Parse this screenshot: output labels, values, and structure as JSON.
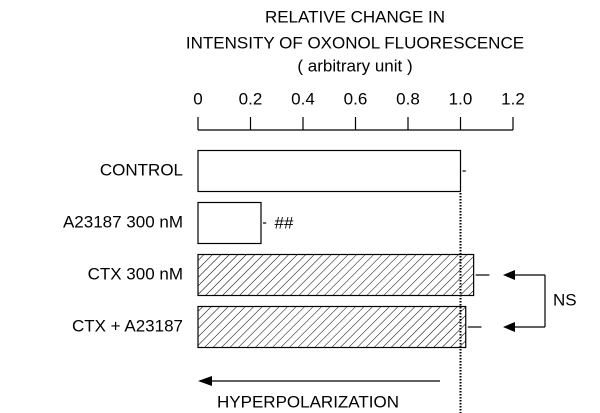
{
  "chart_data": {
    "type": "hbar",
    "title": [
      "RELATIVE CHANGE IN",
      "INTENSITY OF OXONOL FLUORESCENCE"
    ],
    "xlabel": "( arbitrary unit )",
    "categories": [
      "CONTROL",
      "A23187  300 nM",
      "CTX  300 nM",
      "CTX + A23187"
    ],
    "values": [
      1.0,
      0.24,
      1.05,
      1.02
    ],
    "errors": [
      0.02,
      0.02,
      0.06,
      0.06
    ],
    "hatched": [
      false,
      false,
      true,
      true
    ],
    "marks": [
      null,
      "##",
      null,
      null
    ],
    "bracket": {
      "label": "NS",
      "bars": [
        2,
        3
      ]
    },
    "reference_line": {
      "value": 1,
      "label": "1.0"
    },
    "arrow_label": "HYPERPOLARIZATION",
    "color": "#000000",
    "xlim": [
      0,
      1.2
    ],
    "xticks": [
      0,
      0.2,
      0.4,
      0.6,
      0.8,
      {
        "value": 1,
        "label": "1.0"
      },
      1.2
    ]
  }
}
